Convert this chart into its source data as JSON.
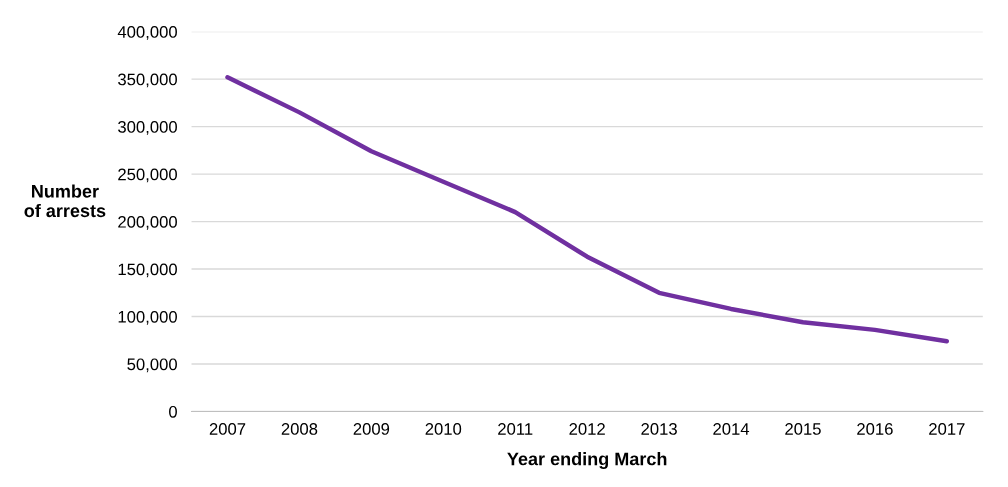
{
  "chart_data": {
    "type": "line",
    "xlabel": "Year ending March",
    "ylabel": "Number\nof arrests",
    "categories": [
      "2007",
      "2008",
      "2009",
      "2010",
      "2011",
      "2012",
      "2013",
      "2014",
      "2015",
      "2016",
      "2017"
    ],
    "series": [
      {
        "color": "#7030a0",
        "values": [
          352000,
          315000,
          274000,
          242000,
          210000,
          163000,
          125000,
          108000,
          94000,
          86000,
          74000
        ]
      }
    ],
    "ylim": [
      0,
      400000
    ],
    "yticks": [
      {
        "value": 0,
        "label": "0"
      },
      {
        "value": 50000,
        "label": "50,000"
      },
      {
        "value": 100000,
        "label": "100,000"
      },
      {
        "value": 150000,
        "label": "150,000"
      },
      {
        "value": 200000,
        "label": "200,000"
      },
      {
        "value": 250000,
        "label": "250,000"
      },
      {
        "value": 300000,
        "label": "300,000"
      },
      {
        "value": 350000,
        "label": "350,000"
      },
      {
        "value": 400000,
        "label": "400,000"
      }
    ],
    "grid": "y",
    "marker": "none",
    "line_style": "solid"
  }
}
